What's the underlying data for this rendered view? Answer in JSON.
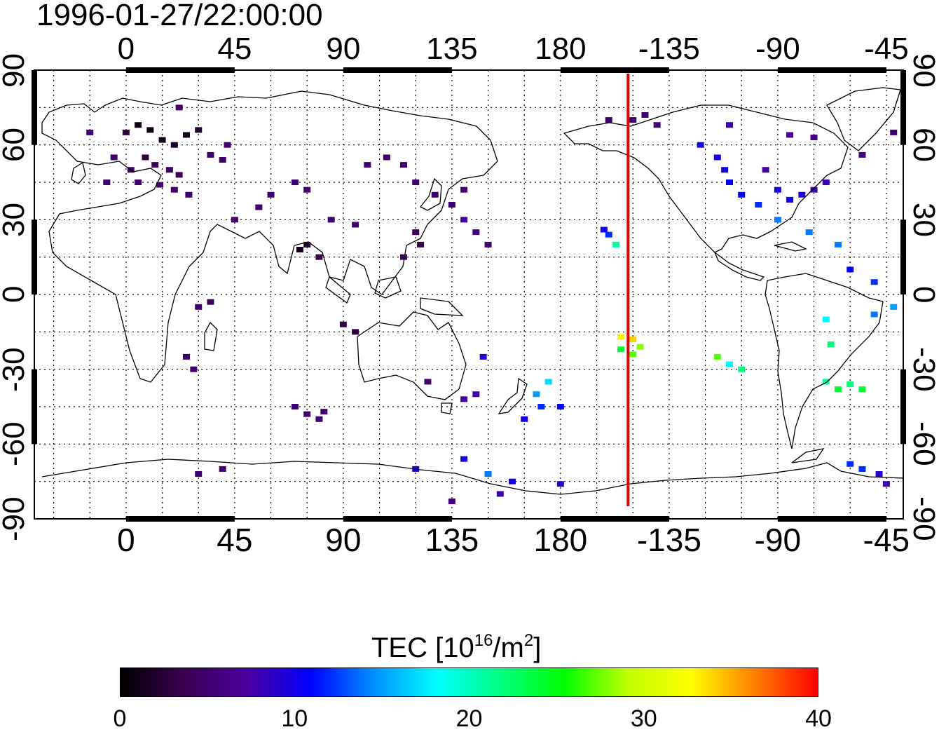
{
  "title": "1996-01-27/22:00:00",
  "top_axis": {
    "ticks": [
      "0",
      "45",
      "90",
      "135",
      "180",
      "-135",
      "-90",
      "-45"
    ]
  },
  "bottom_axis": {
    "ticks": [
      "0",
      "45",
      "90",
      "135",
      "180",
      "-135",
      "-90",
      "-45"
    ]
  },
  "left_axis": {
    "ticks": [
      "90",
      "60",
      "30",
      "0",
      "-30",
      "-60",
      "-90"
    ]
  },
  "right_axis": {
    "ticks": [
      "90",
      "60",
      "30",
      "0",
      "-30",
      "-60",
      "-90"
    ]
  },
  "map": {
    "lon_range": [
      -38,
      322
    ],
    "lat_range": [
      -90,
      90
    ],
    "marker_longitude": 208,
    "marker_color": "#e00000",
    "coastline_color": "#000000",
    "grid": "dotted"
  },
  "colorbar": {
    "label_prefix": "TEC  [10",
    "label_sup": "16",
    "label_mid": "/m",
    "label_sup2": "2",
    "label_suffix": "]",
    "min": 0,
    "max": 40,
    "ticks": [
      "0",
      "10",
      "20",
      "30",
      "40"
    ],
    "colors": [
      "#000000",
      "#3a0050",
      "#4b00a0",
      "#0000ff",
      "#0090ff",
      "#00ffff",
      "#00ff80",
      "#00ff00",
      "#c0ff00",
      "#ffff00",
      "#ff8000",
      "#ff0000"
    ]
  },
  "chart_data": {
    "type": "heatmap",
    "title": "1996-01-27/22:00:00",
    "xlabel": "",
    "ylabel": "",
    "xlim": [
      -38,
      322
    ],
    "ylim": [
      -90,
      90
    ],
    "colorbar_label": "TEC  [10^16/m^2]",
    "colorbar_range": [
      0,
      40
    ],
    "points": [
      [
        0,
        65,
        3
      ],
      [
        5,
        68,
        1
      ],
      [
        10,
        66,
        1
      ],
      [
        15,
        62,
        1
      ],
      [
        20,
        60,
        2
      ],
      [
        25,
        64,
        1
      ],
      [
        30,
        66,
        2
      ],
      [
        8,
        55,
        3
      ],
      [
        12,
        52,
        4
      ],
      [
        18,
        50,
        4
      ],
      [
        22,
        48,
        4
      ],
      [
        2,
        50,
        4
      ],
      [
        -5,
        55,
        5
      ],
      [
        -8,
        45,
        5
      ],
      [
        5,
        45,
        5
      ],
      [
        14,
        44,
        5
      ],
      [
        20,
        42,
        5
      ],
      [
        26,
        40,
        5
      ],
      [
        35,
        56,
        5
      ],
      [
        40,
        54,
        5
      ],
      [
        42,
        60,
        5
      ],
      [
        22,
        75,
        5
      ],
      [
        -15,
        65,
        5
      ],
      [
        45,
        30,
        5
      ],
      [
        55,
        35,
        5
      ],
      [
        60,
        40,
        5
      ],
      [
        70,
        45,
        5
      ],
      [
        75,
        42,
        5
      ],
      [
        100,
        52,
        5
      ],
      [
        108,
        55,
        5
      ],
      [
        115,
        52,
        5
      ],
      [
        120,
        45,
        5
      ],
      [
        128,
        40,
        5
      ],
      [
        135,
        36,
        5
      ],
      [
        140,
        42,
        5
      ],
      [
        85,
        30,
        5
      ],
      [
        95,
        28,
        5
      ],
      [
        75,
        20,
        2
      ],
      [
        80,
        15,
        3
      ],
      [
        72,
        18,
        1
      ],
      [
        120,
        25,
        4
      ],
      [
        122,
        20,
        3
      ],
      [
        115,
        15,
        4
      ],
      [
        140,
        30,
        7
      ],
      [
        145,
        25,
        6
      ],
      [
        150,
        20,
        5
      ],
      [
        30,
        -5,
        5
      ],
      [
        35,
        -3,
        4
      ],
      [
        25,
        -25,
        5
      ],
      [
        28,
        -30,
        5
      ],
      [
        95,
        -15,
        3
      ],
      [
        90,
        -12,
        3
      ],
      [
        125,
        -35,
        5
      ],
      [
        145,
        -40,
        8
      ],
      [
        140,
        -42,
        7
      ],
      [
        148,
        -25,
        9
      ],
      [
        175,
        -35,
        17
      ],
      [
        170,
        -40,
        15
      ],
      [
        172,
        -45,
        12
      ],
      [
        180,
        -45,
        11
      ],
      [
        165,
        -50,
        10
      ],
      [
        70,
        -45,
        5
      ],
      [
        75,
        -48,
        5
      ],
      [
        80,
        -50,
        5
      ],
      [
        82,
        -47,
        5
      ],
      [
        30,
        -72,
        5
      ],
      [
        40,
        -70,
        5
      ],
      [
        120,
        -70,
        10
      ],
      [
        140,
        -66,
        10
      ],
      [
        150,
        -72,
        14
      ],
      [
        160,
        -75,
        10
      ],
      [
        180,
        -76,
        9
      ],
      [
        135,
        -83,
        6
      ],
      [
        155,
        -80,
        8
      ],
      [
        198,
        26,
        10
      ],
      [
        200,
        24,
        12
      ],
      [
        203,
        20,
        21
      ],
      [
        200,
        70,
        5
      ],
      [
        210,
        70,
        5
      ],
      [
        215,
        72,
        5
      ],
      [
        238,
        60,
        10
      ],
      [
        245,
        55,
        10
      ],
      [
        248,
        50,
        10
      ],
      [
        250,
        45,
        11
      ],
      [
        255,
        40,
        11
      ],
      [
        262,
        36,
        12
      ],
      [
        270,
        42,
        10
      ],
      [
        275,
        38,
        10
      ],
      [
        280,
        40,
        9
      ],
      [
        285,
        42,
        8
      ],
      [
        265,
        50,
        7
      ],
      [
        290,
        45,
        8
      ],
      [
        270,
        30,
        14
      ],
      [
        283,
        25,
        14
      ],
      [
        295,
        20,
        14
      ],
      [
        300,
        10,
        11
      ],
      [
        310,
        5,
        12
      ],
      [
        318,
        -5,
        15
      ],
      [
        310,
        -8,
        14
      ],
      [
        205,
        -17,
        33
      ],
      [
        210,
        -18,
        34
      ],
      [
        213,
        -21,
        28
      ],
      [
        205,
        -22,
        24
      ],
      [
        210,
        -24,
        27
      ],
      [
        245,
        -25,
        27
      ],
      [
        250,
        -28,
        18
      ],
      [
        255,
        -30,
        22
      ],
      [
        290,
        -10,
        18
      ],
      [
        292,
        -20,
        22
      ],
      [
        290,
        -35,
        21
      ],
      [
        295,
        -38,
        24
      ],
      [
        300,
        -36,
        22
      ],
      [
        305,
        -38,
        24
      ],
      [
        300,
        -68,
        12
      ],
      [
        305,
        -70,
        12
      ],
      [
        312,
        -72,
        9
      ],
      [
        315,
        -76,
        8
      ],
      [
        318,
        65,
        5
      ],
      [
        305,
        56,
        6
      ],
      [
        285,
        63,
        6
      ],
      [
        275,
        64,
        7
      ],
      [
        250,
        68,
        8
      ],
      [
        220,
        68,
        6
      ]
    ]
  }
}
